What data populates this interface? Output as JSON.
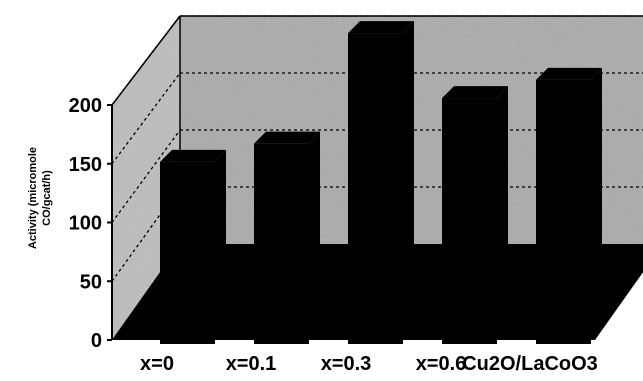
{
  "chart_data": {
    "type": "bar",
    "style": "3d",
    "categories": [
      "x=0",
      "x=0.1",
      "x=0.3",
      "x=0.6",
      "Cu2O/LaCoO3"
    ],
    "series": [
      {
        "values": [
          72,
          88,
          185,
          128,
          144
        ]
      }
    ],
    "ylabel_line1": "Activity (micromole",
    "ylabel_line2": "CO/gcat/h)",
    "ylim": [
      0,
      200
    ],
    "yticks": [
      0,
      50,
      100,
      150,
      200
    ],
    "ytick_labels": [
      "0",
      "50",
      "100",
      "150",
      "200"
    ],
    "grid": true,
    "colors": {
      "bars": "#000000",
      "back_wall": "#a9a9a9",
      "side_wall": "#bdbdbd",
      "floor": "#000000"
    }
  }
}
